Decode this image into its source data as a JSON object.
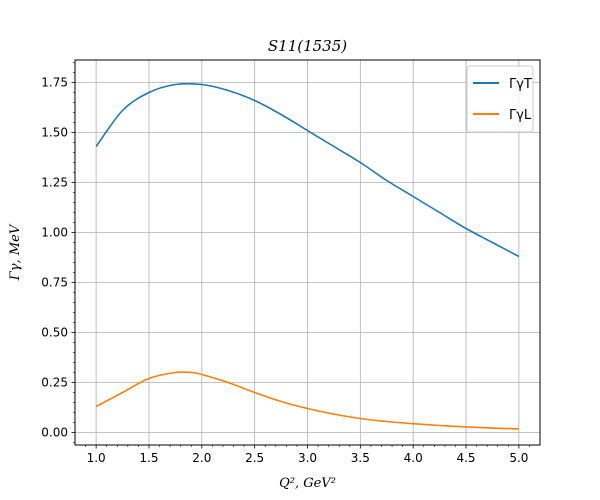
{
  "chart_data": {
    "type": "line",
    "title": "S11(1535)",
    "xlabel": "Q², GeV²",
    "ylabel": "Γγ, MeV",
    "xlim": [
      0.8,
      5.2
    ],
    "ylim": [
      -0.0625,
      1.8625
    ],
    "x_ticks": [
      1.0,
      1.5,
      2.0,
      2.5,
      3.0,
      3.5,
      4.0,
      4.5,
      5.0
    ],
    "x_tick_labels": [
      "1.0",
      "1.5",
      "2.0",
      "2.5",
      "3.0",
      "3.5",
      "4.0",
      "4.5",
      "5.0"
    ],
    "y_ticks": [
      0.0,
      0.25,
      0.5,
      0.75,
      1.0,
      1.25,
      1.5,
      1.75
    ],
    "y_tick_labels": [
      "0.00",
      "0.25",
      "0.50",
      "0.75",
      "1.00",
      "1.25",
      "1.50",
      "1.75"
    ],
    "grid": true,
    "legend_position": "top-right",
    "series": [
      {
        "name": "ΓγT",
        "color": "#1f77b4",
        "x": [
          1.0,
          1.25,
          1.5,
          1.75,
          2.0,
          2.25,
          2.5,
          2.75,
          3.0,
          3.25,
          3.5,
          3.75,
          4.0,
          4.25,
          4.5,
          4.75,
          5.0
        ],
        "y": [
          1.43,
          1.61,
          1.7,
          1.74,
          1.74,
          1.71,
          1.66,
          1.59,
          1.51,
          1.43,
          1.35,
          1.26,
          1.18,
          1.1,
          1.02,
          0.95,
          0.88
        ]
      },
      {
        "name": "ΓγL",
        "color": "#ff7f0e",
        "x": [
          1.0,
          1.25,
          1.5,
          1.75,
          1.9,
          2.0,
          2.25,
          2.5,
          2.75,
          3.0,
          3.25,
          3.5,
          3.75,
          4.0,
          4.25,
          4.5,
          4.75,
          5.0
        ],
        "y": [
          0.13,
          0.2,
          0.27,
          0.3,
          0.3,
          0.29,
          0.25,
          0.2,
          0.155,
          0.12,
          0.092,
          0.07,
          0.055,
          0.044,
          0.035,
          0.028,
          0.022,
          0.018
        ]
      }
    ]
  }
}
